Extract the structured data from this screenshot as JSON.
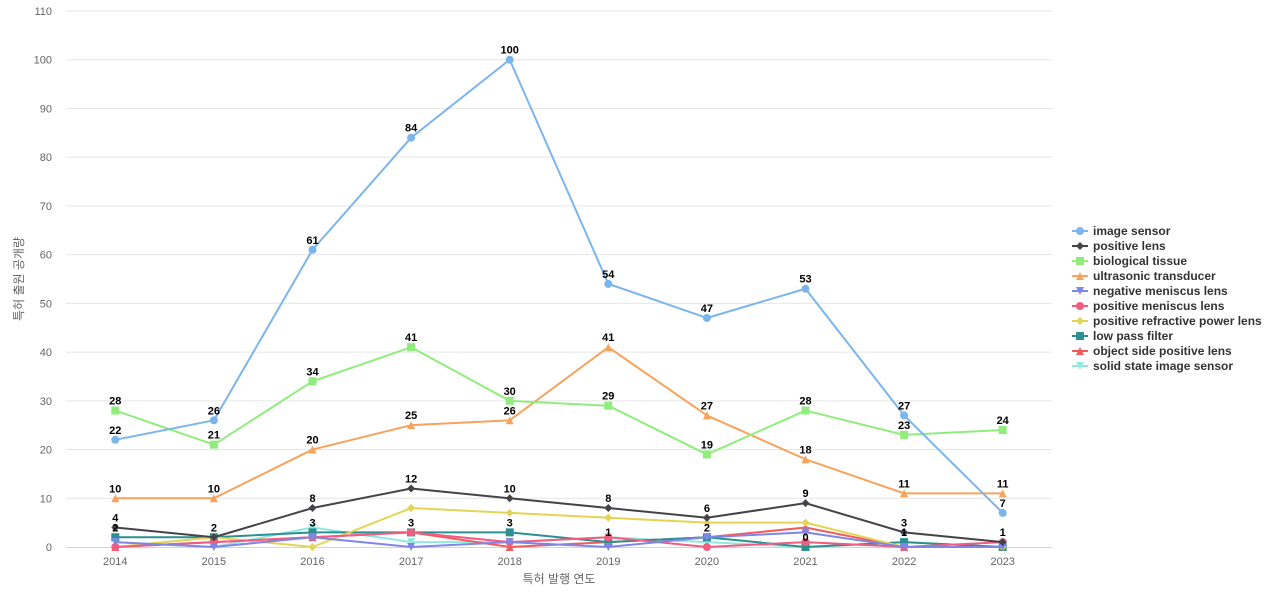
{
  "chart_data": {
    "type": "line",
    "title": "",
    "xlabel": "특허 발행 연도",
    "ylabel": "특허 출원 공개량",
    "categories": [
      "2014",
      "2015",
      "2016",
      "2017",
      "2018",
      "2019",
      "2020",
      "2021",
      "2022",
      "2023"
    ],
    "yticks": [
      0,
      10,
      20,
      30,
      40,
      50,
      60,
      70,
      80,
      90,
      100,
      110
    ],
    "ylim": [
      0,
      110
    ],
    "grid": true,
    "legend_position": "right",
    "series": [
      {
        "name": "image sensor",
        "color": "#7cb5ec",
        "marker": "circle",
        "values": [
          22,
          26,
          61,
          84,
          100,
          54,
          47,
          53,
          27,
          7
        ]
      },
      {
        "name": "positive lens",
        "color": "#434348",
        "marker": "diamond",
        "values": [
          4,
          2,
          8,
          12,
          10,
          8,
          6,
          9,
          3,
          1
        ]
      },
      {
        "name": "biological tissue",
        "color": "#90ed7d",
        "marker": "square",
        "values": [
          28,
          21,
          34,
          41,
          30,
          29,
          19,
          28,
          23,
          24
        ]
      },
      {
        "name": "ultrasonic transducer",
        "color": "#f7a35c",
        "marker": "triangle",
        "values": [
          10,
          10,
          20,
          25,
          26,
          41,
          27,
          18,
          11,
          11
        ]
      },
      {
        "name": "negative meniscus lens",
        "color": "#8085e9",
        "marker": "triangle-down",
        "values": [
          1,
          0,
          2,
          0,
          1,
          0,
          2,
          3,
          0,
          0
        ]
      },
      {
        "name": "positive meniscus lens",
        "color": "#f15c80",
        "marker": "circle",
        "values": [
          0,
          1,
          2,
          3,
          1,
          2,
          0,
          1,
          0,
          1
        ]
      },
      {
        "name": "positive refractive power lens",
        "color": "#e4d354",
        "marker": "diamond",
        "values": [
          0,
          2,
          0,
          8,
          7,
          6,
          5,
          5,
          0,
          0
        ]
      },
      {
        "name": "low pass filter",
        "color": "#2b908f",
        "marker": "square",
        "values": [
          2,
          2,
          3,
          3,
          3,
          1,
          2,
          0,
          1,
          0
        ]
      },
      {
        "name": "object side positive lens",
        "color": "#f45b5b",
        "marker": "triangle",
        "values": [
          0,
          1,
          2,
          3,
          0,
          1,
          2,
          4,
          0,
          0
        ]
      },
      {
        "name": "solid state image sensor",
        "color": "#91e8e1",
        "marker": "triangle-down",
        "values": [
          1,
          0,
          4,
          1,
          1,
          2,
          1,
          0,
          1,
          0
        ]
      }
    ],
    "data_labels": [
      {
        "series": 0,
        "indices": [
          0,
          1,
          2,
          3,
          4,
          5,
          6,
          7,
          8,
          9
        ]
      },
      {
        "series": 1,
        "indices": [
          0,
          1,
          2,
          3,
          4,
          5,
          6,
          7,
          8,
          9
        ]
      },
      {
        "series": 2,
        "indices": [
          0,
          1,
          2,
          3,
          4,
          5,
          6,
          7,
          8,
          9
        ]
      },
      {
        "series": 3,
        "indices": [
          0,
          1,
          2,
          3,
          4,
          5,
          6,
          7,
          8,
          9
        ]
      },
      {
        "series": 7,
        "indices": [
          0,
          2,
          3,
          4,
          5,
          6,
          7,
          8
        ]
      }
    ]
  }
}
